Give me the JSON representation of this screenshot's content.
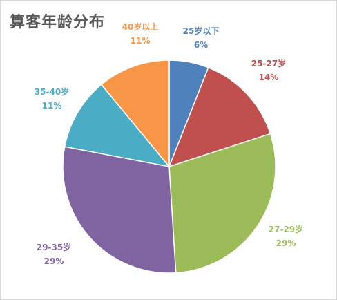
{
  "title": "算客年龄分布",
  "chart_data": {
    "type": "pie",
    "title": "算客年龄分布",
    "labels": [
      "25岁以下",
      "25-27岁",
      "27-29岁",
      "29-35岁",
      "35-40岁",
      "40岁以上"
    ],
    "values": [
      6,
      14,
      29,
      29,
      11,
      11
    ],
    "value_labels": [
      "6%",
      "14%",
      "29%",
      "29%",
      "11%",
      "11%"
    ],
    "colors": [
      "#4F81BD",
      "#C0504D",
      "#9BBB59",
      "#8064A2",
      "#4BACC6",
      "#F79646"
    ],
    "start_angle": "12 o'clock",
    "direction": "clockwise",
    "legend": "none",
    "data_labels": "outside"
  }
}
